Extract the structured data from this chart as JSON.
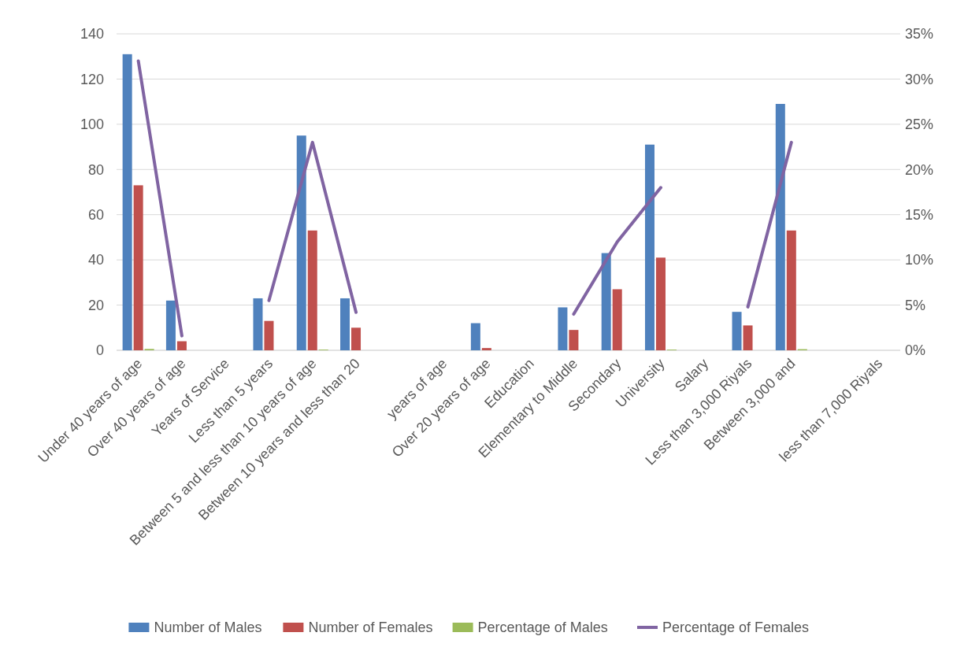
{
  "chart_data": {
    "type": "bar",
    "categories": [
      "Under 40 years of age",
      "Over 40 years of age",
      "Years of Service",
      "Less than 5 years",
      "Between 5 and less than 10 years of age",
      "Between 10 years and less than 20",
      null,
      "years of age",
      "Over 20 years of age",
      "Education",
      "Elementary to Middle",
      "Secondary",
      "University",
      "Salary",
      "Less than 3,000 Riyals",
      "Between 3,000 and",
      null,
      "less than 7,000 Riyals"
    ],
    "series": [
      {
        "name": "Number of Males",
        "color": "#4f81bd",
        "values": [
          131,
          22,
          null,
          23,
          95,
          23,
          null,
          null,
          12,
          null,
          19,
          43,
          91,
          null,
          17,
          109,
          null,
          null
        ]
      },
      {
        "name": "Number of Females",
        "color": "#c0504d",
        "values": [
          73,
          4,
          null,
          13,
          53,
          10,
          null,
          null,
          1,
          null,
          9,
          27,
          41,
          null,
          11,
          53,
          null,
          null
        ]
      },
      {
        "name": "Percentage of Males",
        "color": "#9bbb59",
        "values": [
          0.6,
          null,
          null,
          null,
          0.3,
          null,
          null,
          null,
          null,
          null,
          null,
          null,
          0.3,
          null,
          null,
          0.5,
          null,
          null
        ]
      },
      {
        "name": "Percentage of Females",
        "color": "#8064a2",
        "type": "line",
        "axis": "y2",
        "values": [
          32,
          1.6,
          null,
          5.5,
          23,
          4.2,
          null,
          null,
          null,
          null,
          4,
          12,
          18,
          null,
          4.8,
          23,
          null,
          null
        ]
      }
    ],
    "ylim": [
      0,
      140
    ],
    "yticks": [
      0,
      20,
      40,
      60,
      80,
      100,
      120,
      140
    ],
    "y2lim": [
      0,
      35
    ],
    "y2ticks": [
      {
        "value": 0,
        "label": "0%"
      },
      {
        "value": 5,
        "label": "5%"
      },
      {
        "value": 10,
        "label": "10%"
      },
      {
        "value": 15,
        "label": "15%"
      },
      {
        "value": 20,
        "label": "20%"
      },
      {
        "value": 25,
        "label": "25%"
      },
      {
        "value": 30,
        "label": "30%"
      },
      {
        "value": 35,
        "label": "35%"
      }
    ],
    "grid": "y",
    "legend": "bottom",
    "marker": "none",
    "line_style": "solid"
  }
}
